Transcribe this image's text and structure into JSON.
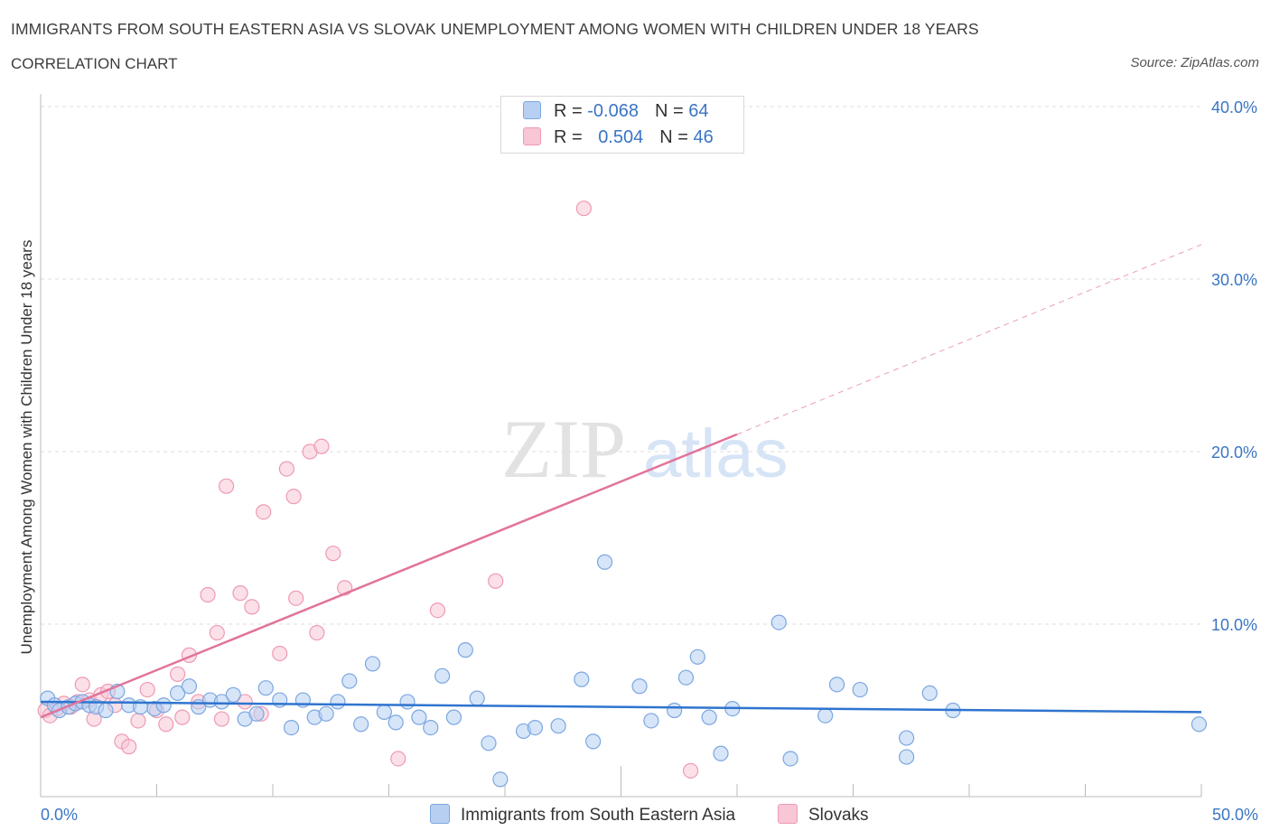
{
  "header": {
    "title": "IMMIGRANTS FROM SOUTH EASTERN ASIA VS SLOVAK UNEMPLOYMENT AMONG WOMEN WITH CHILDREN UNDER 18 YEARS",
    "subtitle": "CORRELATION CHART",
    "source": "Source: ZipAtlas.com"
  },
  "legend": {
    "blue": {
      "r_label": "R = ",
      "r_value": "-0.068",
      "n_label": "N = ",
      "n_value": "64"
    },
    "pink": {
      "r_label": "R = ",
      "r_value": "0.504",
      "n_label": "N = ",
      "n_value": "46"
    }
  },
  "watermark": {
    "zip": "ZIP",
    "atlas": "atlas"
  },
  "colors": {
    "blue_fill": "#b7d0f2",
    "blue_stroke": "#7ba7e0",
    "blue_line": "#2f74cf",
    "pink_fill": "#f8c6d5",
    "pink_stroke": "#ee9ab4",
    "pink_line": "#e2739a",
    "tick_label": "#3a75c4",
    "grid": "#dddddd"
  },
  "chart_data": {
    "type": "scatter",
    "ylabel": "Unemployment Among Women with Children Under 18 years",
    "xlim": [
      0,
      50
    ],
    "ylim": [
      0,
      40
    ],
    "x_tick_labels": [
      "0.0%",
      "50.0%"
    ],
    "y_ticks": [
      10,
      20,
      30,
      40
    ],
    "y_tick_labels": [
      "10.0%",
      "20.0%",
      "30.0%",
      "40.0%"
    ],
    "series": [
      {
        "name": "Immigrants from South Eastern Asia",
        "r": -0.068,
        "n": 64,
        "trend": {
          "x0": 0,
          "y0": 5.5,
          "x1": 50,
          "y1": 4.9
        },
        "points": [
          [
            0.3,
            5.7
          ],
          [
            0.6,
            5.3
          ],
          [
            0.8,
            5.0
          ],
          [
            1.2,
            5.2
          ],
          [
            1.5,
            5.4
          ],
          [
            1.8,
            5.5
          ],
          [
            2.1,
            5.3
          ],
          [
            2.4,
            5.2
          ],
          [
            2.8,
            5.0
          ],
          [
            3.3,
            6.1
          ],
          [
            3.8,
            5.3
          ],
          [
            4.3,
            5.2
          ],
          [
            4.9,
            5.1
          ],
          [
            5.3,
            5.3
          ],
          [
            5.9,
            6.0
          ],
          [
            6.4,
            6.4
          ],
          [
            6.8,
            5.2
          ],
          [
            7.3,
            5.6
          ],
          [
            7.8,
            5.5
          ],
          [
            8.3,
            5.9
          ],
          [
            8.8,
            4.5
          ],
          [
            9.3,
            4.8
          ],
          [
            9.7,
            6.3
          ],
          [
            10.3,
            5.6
          ],
          [
            10.8,
            4.0
          ],
          [
            11.3,
            5.6
          ],
          [
            11.8,
            4.6
          ],
          [
            12.3,
            4.8
          ],
          [
            12.8,
            5.5
          ],
          [
            13.3,
            6.7
          ],
          [
            13.8,
            4.2
          ],
          [
            14.3,
            7.7
          ],
          [
            14.8,
            4.9
          ],
          [
            15.3,
            4.3
          ],
          [
            15.8,
            5.5
          ],
          [
            16.3,
            4.6
          ],
          [
            16.8,
            4.0
          ],
          [
            17.3,
            7.0
          ],
          [
            17.8,
            4.6
          ],
          [
            18.3,
            8.5
          ],
          [
            18.8,
            5.7
          ],
          [
            19.3,
            3.1
          ],
          [
            19.8,
            1.0
          ],
          [
            20.8,
            3.8
          ],
          [
            21.3,
            4.0
          ],
          [
            22.3,
            4.1
          ],
          [
            23.3,
            6.8
          ],
          [
            23.8,
            3.2
          ],
          [
            24.3,
            13.6
          ],
          [
            25.8,
            6.4
          ],
          [
            26.3,
            4.4
          ],
          [
            27.3,
            5.0
          ],
          [
            27.8,
            6.9
          ],
          [
            28.3,
            8.1
          ],
          [
            28.8,
            4.6
          ],
          [
            29.3,
            2.5
          ],
          [
            29.8,
            5.1
          ],
          [
            31.8,
            10.1
          ],
          [
            32.3,
            2.2
          ],
          [
            33.8,
            4.7
          ],
          [
            34.3,
            6.5
          ],
          [
            35.3,
            6.2
          ],
          [
            37.3,
            3.4
          ],
          [
            37.3,
            2.3
          ],
          [
            38.3,
            6.0
          ],
          [
            39.3,
            5.0
          ],
          [
            49.9,
            4.2
          ]
        ]
      },
      {
        "name": "Slovaks",
        "r": 0.504,
        "n": 46,
        "trend": {
          "x0": 0,
          "y0": 4.6,
          "x1": 30,
          "y1": 21.0,
          "dash_x1": 50,
          "dash_y1": 32.0
        },
        "points": [
          [
            0.2,
            5.0
          ],
          [
            0.4,
            4.7
          ],
          [
            0.7,
            5.1
          ],
          [
            1.0,
            5.4
          ],
          [
            1.3,
            5.2
          ],
          [
            1.6,
            5.5
          ],
          [
            1.8,
            6.5
          ],
          [
            2.1,
            5.6
          ],
          [
            2.3,
            4.5
          ],
          [
            2.6,
            5.9
          ],
          [
            2.9,
            6.1
          ],
          [
            3.2,
            5.3
          ],
          [
            3.5,
            3.2
          ],
          [
            3.8,
            2.9
          ],
          [
            4.2,
            4.4
          ],
          [
            4.6,
            6.2
          ],
          [
            5.0,
            5.0
          ],
          [
            5.4,
            4.2
          ],
          [
            5.9,
            7.1
          ],
          [
            6.1,
            4.6
          ],
          [
            6.4,
            8.2
          ],
          [
            6.8,
            5.5
          ],
          [
            7.2,
            11.7
          ],
          [
            7.6,
            9.5
          ],
          [
            7.8,
            4.5
          ],
          [
            8.0,
            18.0
          ],
          [
            8.6,
            11.8
          ],
          [
            8.8,
            5.5
          ],
          [
            9.1,
            11.0
          ],
          [
            9.5,
            4.8
          ],
          [
            9.6,
            16.5
          ],
          [
            10.3,
            8.3
          ],
          [
            10.6,
            19.0
          ],
          [
            10.9,
            17.4
          ],
          [
            11.0,
            11.5
          ],
          [
            11.6,
            20.0
          ],
          [
            11.9,
            9.5
          ],
          [
            12.1,
            20.3
          ],
          [
            12.6,
            14.1
          ],
          [
            13.1,
            12.1
          ],
          [
            15.4,
            2.2
          ],
          [
            17.1,
            10.8
          ],
          [
            19.6,
            12.5
          ],
          [
            23.4,
            34.1
          ],
          [
            28.0,
            1.5
          ]
        ]
      }
    ]
  },
  "bottom_legend": {
    "blue_label": "Immigrants from South Eastern Asia",
    "pink_label": "Slovaks"
  }
}
